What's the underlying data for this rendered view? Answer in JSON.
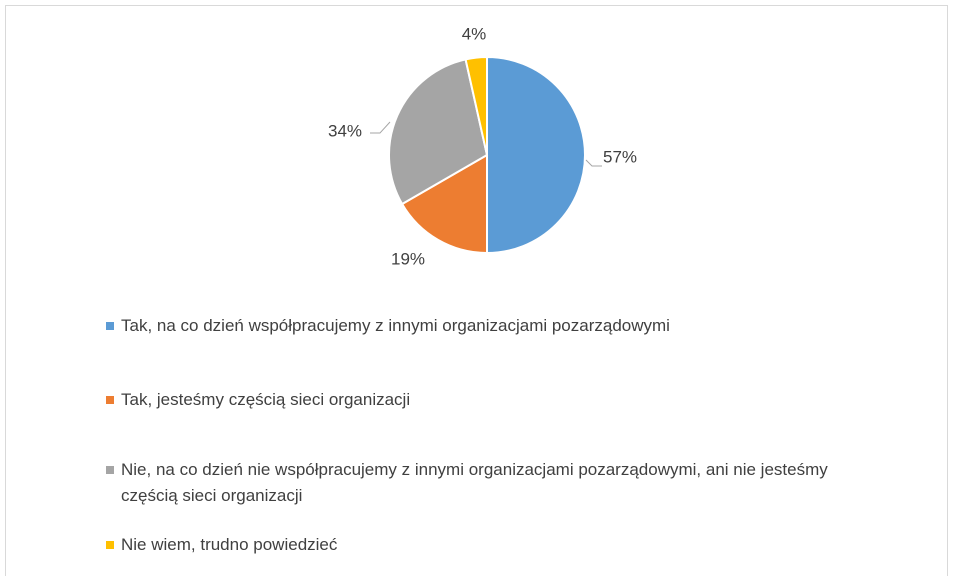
{
  "chart_data": {
    "type": "pie",
    "categories": [
      "Tak, na co dzień współpracujemy z innymi organizacjami pozarządowymi",
      "Tak, jesteśmy częścią sieci organizacji",
      "Nie, na co dzień nie współpracujemy z innymi organizacjami pozarządowymi, ani nie jesteśmy częścią sieci organizacji",
      "Nie wiem, trudno powiedzieć"
    ],
    "values": [
      57,
      19,
      34,
      4
    ],
    "value_labels": [
      "57%",
      "19%",
      "34%",
      "4%"
    ],
    "colors": [
      "#5b9bd5",
      "#ed7d31",
      "#a5a5a5",
      "#ffc000"
    ],
    "legend": "bottom"
  }
}
